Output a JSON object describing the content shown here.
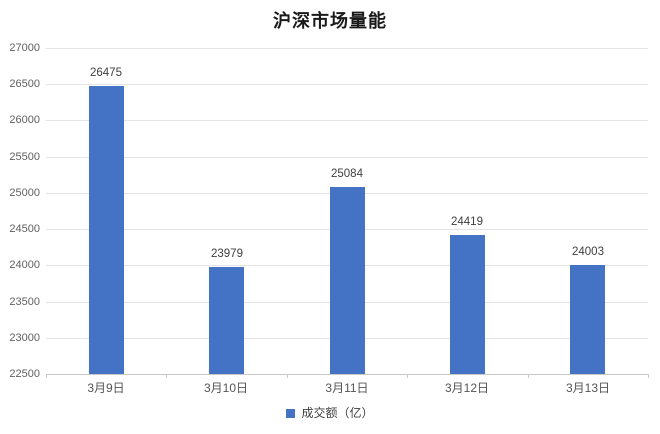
{
  "title": "沪深市场量能",
  "legend": {
    "label": "成交额（亿）",
    "marker_color": "#4472C4"
  },
  "colors": {
    "bar": "#4472C4",
    "gridline": "#e4e4e4",
    "axis": "#c9c9c9",
    "tick_label": "#5f5f5f",
    "data_label": "#3f3f3f",
    "title": "#1a1a1a"
  },
  "chart_data": {
    "type": "bar",
    "title": "沪深市场量能",
    "categories": [
      "3月9日",
      "3月10日",
      "3月11日",
      "3月12日",
      "3月13日"
    ],
    "values": [
      26475,
      23979,
      25084,
      24419,
      24003
    ],
    "series_name": "成交额（亿）",
    "xlabel": "",
    "ylabel": "",
    "ylim": [
      22500,
      27000
    ],
    "ytick_step": 500,
    "yticks": [
      27000,
      26500,
      26000,
      25500,
      25000,
      24500,
      24000,
      23500,
      23000,
      22500
    ],
    "grid": true,
    "legend_position": "bottom",
    "data_labels_shown": true
  }
}
